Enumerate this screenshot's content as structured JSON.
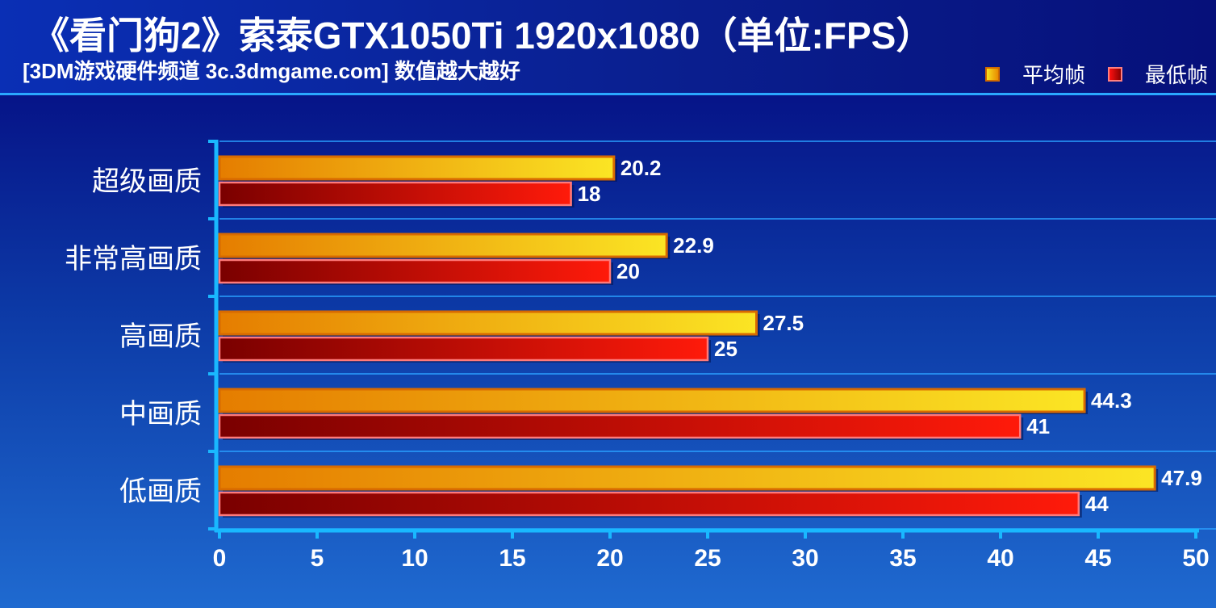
{
  "header": {
    "title": "《看门狗2》索泰GTX1050Ti 1920x1080（单位:FPS）",
    "subtitle": "[3DM游戏硬件频道 3c.3dmgame.com] 数值越大越好"
  },
  "colors": {
    "avg_light": "#fbe524",
    "avg_dark": "#e57d00",
    "min_light": "#ff1a0a",
    "min_dark": "#7a0000",
    "axis": "#19b8ff",
    "gridline": "#2a9fff"
  },
  "chart_data": {
    "type": "bar",
    "orientation": "horizontal",
    "title": "《看门狗2》索泰GTX1050Ti 1920x1080（单位:FPS）",
    "xlabel": "",
    "ylabel": "",
    "xlim": [
      0,
      50
    ],
    "xticks": [
      0,
      5,
      10,
      15,
      20,
      25,
      30,
      35,
      40,
      45,
      50
    ],
    "categories": [
      "超级画质",
      "非常高画质",
      "高画质",
      "中画质",
      "低画质"
    ],
    "series": [
      {
        "name": "平均帧",
        "values": [
          20.2,
          22.9,
          27.5,
          44.3,
          47.9
        ]
      },
      {
        "name": "最低帧",
        "values": [
          18,
          20,
          25,
          41,
          44
        ]
      }
    ],
    "value_labels": [
      [
        "20.2",
        "22.9",
        "27.5",
        "44.3",
        "47.9"
      ],
      [
        "18",
        "20",
        "25",
        "41",
        "44"
      ]
    ],
    "legend_position": "top-right",
    "grid": true
  }
}
